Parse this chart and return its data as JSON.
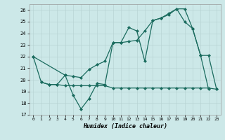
{
  "xlabel": "Humidex (Indice chaleur)",
  "xlim": [
    -0.5,
    23.5
  ],
  "ylim": [
    17,
    26.5
  ],
  "yticks": [
    17,
    18,
    19,
    20,
    21,
    22,
    23,
    24,
    25,
    26
  ],
  "xticks": [
    0,
    1,
    2,
    3,
    4,
    5,
    6,
    7,
    8,
    9,
    10,
    11,
    12,
    13,
    14,
    15,
    16,
    17,
    18,
    19,
    20,
    21,
    22,
    23
  ],
  "bg_color": "#cce8e8",
  "line_color": "#1a6b5e",
  "grid_color": "#b8d4d4",
  "line1_x": [
    0,
    1,
    2,
    3,
    4,
    5,
    6,
    7,
    8,
    9,
    10,
    11,
    12,
    13,
    14,
    15,
    16,
    17,
    18,
    19,
    20,
    21,
    22
  ],
  "line1_y": [
    22.0,
    19.8,
    19.6,
    19.6,
    20.4,
    18.7,
    17.5,
    18.4,
    19.7,
    19.6,
    23.2,
    23.2,
    24.5,
    24.2,
    21.6,
    25.1,
    25.3,
    25.6,
    26.1,
    25.0,
    24.4,
    22.1,
    19.2
  ],
  "line2_x": [
    0,
    4,
    5,
    6,
    7,
    8,
    9,
    10,
    11,
    12,
    13,
    14,
    15,
    16,
    17,
    18,
    19,
    20,
    21,
    22,
    23
  ],
  "line2_y": [
    22.0,
    20.4,
    20.3,
    20.2,
    20.9,
    21.3,
    21.6,
    23.2,
    23.2,
    23.3,
    23.4,
    24.2,
    25.1,
    25.3,
    25.7,
    26.1,
    26.1,
    24.4,
    22.1,
    22.1,
    19.2
  ],
  "line3_x": [
    1,
    2,
    3,
    4,
    5,
    6,
    7,
    8,
    9,
    10,
    11,
    12,
    13,
    14,
    15,
    16,
    17,
    18,
    19,
    20,
    21,
    22,
    23
  ],
  "line3_y": [
    19.8,
    19.6,
    19.6,
    19.5,
    19.5,
    19.5,
    19.5,
    19.5,
    19.5,
    19.3,
    19.3,
    19.3,
    19.3,
    19.3,
    19.3,
    19.3,
    19.3,
    19.3,
    19.3,
    19.3,
    19.3,
    19.3,
    19.2
  ]
}
